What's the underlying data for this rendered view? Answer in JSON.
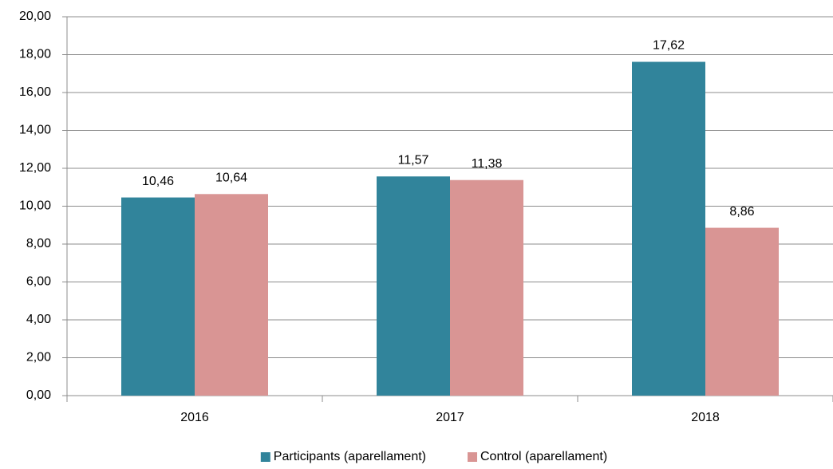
{
  "chart_data": {
    "type": "bar",
    "categories": [
      "2016",
      "2017",
      "2018"
    ],
    "series": [
      {
        "name": "Participants (aparellament)",
        "color": "#31849b",
        "values": [
          10.46,
          11.57,
          17.62
        ],
        "value_labels": [
          "10,46",
          "11,57",
          "17,62"
        ]
      },
      {
        "name": "Control (aparellament)",
        "color": "#d99594",
        "values": [
          10.64,
          11.38,
          8.86
        ],
        "value_labels": [
          "10,64",
          "11,38",
          "8,86"
        ]
      }
    ],
    "ylim": [
      0,
      20
    ],
    "yticks": [
      {
        "value": 0,
        "label": "0,00"
      },
      {
        "value": 2,
        "label": "2,00"
      },
      {
        "value": 4,
        "label": "4,00"
      },
      {
        "value": 6,
        "label": "6,00"
      },
      {
        "value": 8,
        "label": "8,00"
      },
      {
        "value": 10,
        "label": "10,00"
      },
      {
        "value": 12,
        "label": "12,00"
      },
      {
        "value": 14,
        "label": "14,00"
      },
      {
        "value": 16,
        "label": "16,00"
      },
      {
        "value": 18,
        "label": "18,00"
      },
      {
        "value": 20,
        "label": "20,00"
      }
    ],
    "grid": true,
    "legend": "bottom"
  }
}
